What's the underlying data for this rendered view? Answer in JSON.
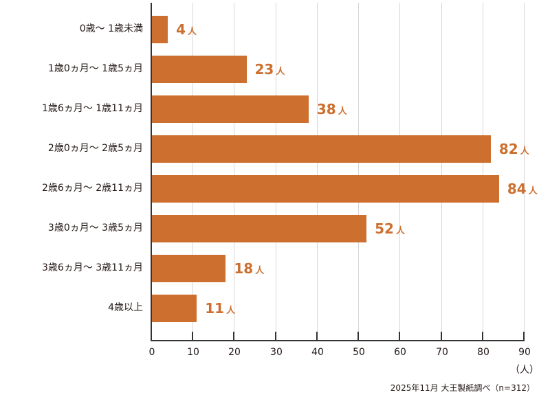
{
  "chart_data": {
    "type": "bar",
    "orientation": "horizontal",
    "categories": [
      "0歳〜1歳未満",
      "1歳0ヵ月〜1歳5ヵ月",
      "1歳6ヵ月〜1歳11ヵ月",
      "2歳0ヵ月〜2歳5ヵ月",
      "2歳6ヵ月〜2歳11ヵ月",
      "3歳0ヵ月〜3歳5ヵ月",
      "3歳6ヵ月〜3歳11ヵ月",
      "4歳以上"
    ],
    "values": [
      4,
      23,
      38,
      82,
      84,
      52,
      18,
      11
    ],
    "value_unit": "人",
    "title": "",
    "xlabel": "（人）",
    "ylabel": "",
    "xlim": [
      0,
      90
    ],
    "xticks": [
      0,
      10,
      20,
      30,
      40,
      50,
      60,
      70,
      80,
      90
    ],
    "grid": "vertical",
    "legend": "none",
    "source": "2025年11月 大王製紙調べ（n=312）",
    "bar_color": "#cc6f2f"
  },
  "labels": {
    "categories": [
      "0歳〜 1歳未満",
      "1歳0ヵ月〜 1歳5ヵ月",
      "1歳6ヵ月〜 1歳11ヵ月",
      "2歳0ヵ月〜 2歳5ヵ月",
      "2歳6ヵ月〜 2歳11ヵ月",
      "3歳0ヵ月〜 3歳5ヵ月",
      "3歳6ヵ月〜 3歳11ヵ月",
      "4歳以上"
    ],
    "values": [
      "4",
      "23",
      "38",
      "82",
      "84",
      "52",
      "18",
      "11"
    ],
    "unit": "人",
    "ticks": [
      "0",
      "10",
      "20",
      "30",
      "40",
      "50",
      "60",
      "70",
      "80",
      "90"
    ],
    "axis_unit": "（人）",
    "source": "2025年11月 大王製紙調べ（n=312）"
  }
}
